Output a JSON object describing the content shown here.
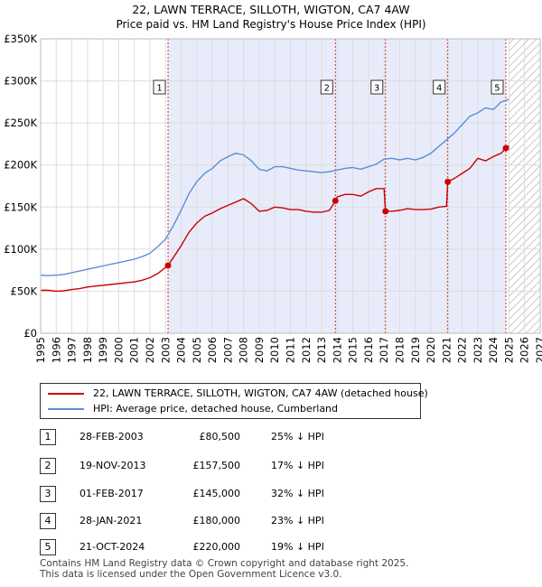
{
  "chart_data": {
    "type": "line",
    "title": "22, LAWN TERRACE, SILLOTH, WIGTON, CA7 4AW",
    "subtitle": "Price paid vs. HM Land Registry's House Price Index (HPI)",
    "xlim": [
      1995,
      2027
    ],
    "ylim": [
      0,
      350000
    ],
    "y_ticks": [
      0,
      50000,
      100000,
      150000,
      200000,
      250000,
      300000,
      350000
    ],
    "y_tick_labels": [
      "£0",
      "£50K",
      "£100K",
      "£150K",
      "£200K",
      "£250K",
      "£300K",
      "£350K"
    ],
    "x_ticks": [
      1995,
      1996,
      1997,
      1998,
      1999,
      2000,
      2001,
      2002,
      2003,
      2004,
      2005,
      2006,
      2007,
      2008,
      2009,
      2010,
      2011,
      2012,
      2013,
      2014,
      2015,
      2016,
      2017,
      2018,
      2019,
      2020,
      2021,
      2022,
      2023,
      2024,
      2025,
      2026,
      2027
    ],
    "x_tick_labels": [
      "1995",
      "1996",
      "1997",
      "1998",
      "1999",
      "2000",
      "2001",
      "2002",
      "2003",
      "2004",
      "2005",
      "2006",
      "2007",
      "2008",
      "2009",
      "2010",
      "2011",
      "2012",
      "2013",
      "2014",
      "2015",
      "2016",
      "2017",
      "2018",
      "2019",
      "2020",
      "2021",
      "2022",
      "2023",
      "2024",
      "2025",
      "2026",
      "2027"
    ],
    "grid": true,
    "shaded_period": [
      2003.16,
      2024.8
    ],
    "forecast_start": 2025.0,
    "series": [
      {
        "name": "22, LAWN TERRACE, SILLOTH, WIGTON, CA7 4AW (detached house)",
        "color": "#cc0000",
        "x": [
          1995.0,
          1995.5,
          1996.0,
          1996.5,
          1997.0,
          1997.5,
          1998.0,
          1998.5,
          1999.0,
          1999.5,
          2000.0,
          2000.5,
          2001.0,
          2001.5,
          2002.0,
          2002.5,
          2003.16,
          2003.5,
          2004.0,
          2004.5,
          2005.0,
          2005.5,
          2006.0,
          2006.5,
          2007.0,
          2007.5,
          2008.0,
          2008.5,
          2009.0,
          2009.5,
          2010.0,
          2010.5,
          2011.0,
          2011.5,
          2012.0,
          2012.5,
          2013.0,
          2013.5,
          2013.88,
          2014.0,
          2014.5,
          2015.0,
          2015.5,
          2016.0,
          2016.5,
          2017.0,
          2017.09,
          2017.5,
          2018.0,
          2018.5,
          2019.0,
          2019.5,
          2020.0,
          2020.5,
          2021.0,
          2021.08,
          2021.5,
          2022.0,
          2022.5,
          2023.0,
          2023.5,
          2024.0,
          2024.5,
          2024.8,
          2025.0
        ],
        "values": [
          51000,
          51000,
          50000,
          50500,
          52000,
          53000,
          55000,
          56000,
          57000,
          58000,
          59000,
          60000,
          61000,
          63000,
          66000,
          71000,
          80500,
          90000,
          104000,
          120000,
          131000,
          139000,
          143000,
          148000,
          152000,
          156000,
          160000,
          154000,
          145000,
          146000,
          150000,
          149000,
          147000,
          147000,
          145000,
          144000,
          144000,
          146000,
          157500,
          162000,
          165000,
          165000,
          163000,
          168000,
          172000,
          172000,
          145000,
          145000,
          146000,
          148000,
          147000,
          147000,
          147500,
          150000,
          151000,
          180000,
          184000,
          190000,
          196000,
          208000,
          205000,
          210000,
          214000,
          220000,
          223000
        ]
      },
      {
        "name": "HPI: Average price, detached house, Cumberland",
        "color": "#5b8fd0",
        "x": [
          1995.0,
          1995.5,
          1996.0,
          1996.5,
          1997.0,
          1997.5,
          1998.0,
          1998.5,
          1999.0,
          1999.5,
          2000.0,
          2000.5,
          2001.0,
          2001.5,
          2002.0,
          2002.5,
          2003.0,
          2003.5,
          2004.0,
          2004.5,
          2005.0,
          2005.5,
          2006.0,
          2006.5,
          2007.0,
          2007.5,
          2008.0,
          2008.5,
          2009.0,
          2009.5,
          2010.0,
          2010.5,
          2011.0,
          2011.5,
          2012.0,
          2012.5,
          2013.0,
          2013.5,
          2014.0,
          2014.5,
          2015.0,
          2015.5,
          2016.0,
          2016.5,
          2017.0,
          2017.5,
          2018.0,
          2018.5,
          2019.0,
          2019.5,
          2020.0,
          2020.5,
          2021.0,
          2021.5,
          2022.0,
          2022.5,
          2023.0,
          2023.5,
          2024.0,
          2024.5,
          2025.0
        ],
        "values": [
          69000,
          68500,
          69000,
          70000,
          72000,
          74000,
          76000,
          78000,
          80000,
          82000,
          84000,
          86000,
          88000,
          91000,
          95000,
          103000,
          112000,
          128000,
          146000,
          166000,
          180000,
          190000,
          196000,
          205000,
          210000,
          214000,
          212000,
          205000,
          195000,
          193000,
          198000,
          198000,
          196000,
          194000,
          193000,
          192000,
          191000,
          192000,
          194000,
          196000,
          197000,
          195000,
          198000,
          201000,
          207000,
          208000,
          206000,
          208000,
          206000,
          209000,
          214000,
          222000,
          230000,
          238000,
          248000,
          258000,
          262000,
          268000,
          266000,
          275000,
          278000
        ]
      }
    ],
    "sales": [
      {
        "label": "1",
        "x": 2003.16,
        "value": 80500
      },
      {
        "label": "2",
        "x": 2013.88,
        "value": 157500
      },
      {
        "label": "3",
        "x": 2017.09,
        "value": 145000
      },
      {
        "label": "4",
        "x": 2021.08,
        "value": 180000
      },
      {
        "label": "5",
        "x": 2024.8,
        "value": 220000
      }
    ]
  },
  "legend": {
    "property_label": "22, LAWN TERRACE, SILLOTH, WIGTON, CA7 4AW (detached house)",
    "hpi_label": "HPI: Average price, detached house, Cumberland"
  },
  "table": [
    {
      "num": "1",
      "date": "28-FEB-2003",
      "price": "£80,500",
      "pct": "25% ↓ HPI"
    },
    {
      "num": "2",
      "date": "19-NOV-2013",
      "price": "£157,500",
      "pct": "17% ↓ HPI"
    },
    {
      "num": "3",
      "date": "01-FEB-2017",
      "price": "£145,000",
      "pct": "32% ↓ HPI"
    },
    {
      "num": "4",
      "date": "28-JAN-2021",
      "price": "£180,000",
      "pct": "23% ↓ HPI"
    },
    {
      "num": "5",
      "date": "21-OCT-2024",
      "price": "£220,000",
      "pct": "19% ↓ HPI"
    }
  ],
  "footer": {
    "line1": "Contains HM Land Registry data © Crown copyright and database right 2025.",
    "line2": "This data is licensed under the Open Government Licence v3.0."
  }
}
